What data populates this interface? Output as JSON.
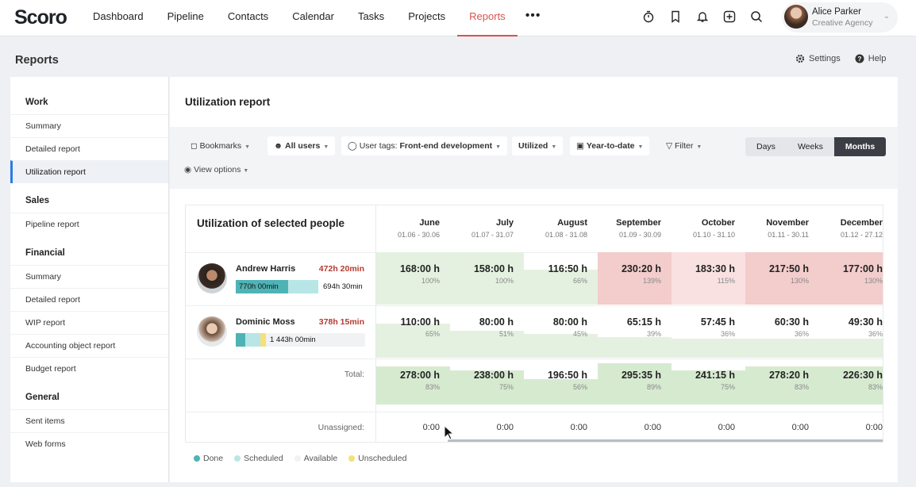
{
  "app": {
    "logo": "Scoro"
  },
  "nav": {
    "items": [
      "Dashboard",
      "Pipeline",
      "Contacts",
      "Calendar",
      "Tasks",
      "Projects",
      "Reports"
    ],
    "active": "Reports",
    "more": "•••"
  },
  "top_icons": [
    "timer-icon",
    "bookmark-icon",
    "bell-icon",
    "plus-square-icon",
    "search-icon"
  ],
  "user": {
    "name": "Alice Parker",
    "company": "Creative Agency"
  },
  "page": {
    "title": "Reports",
    "settings": "Settings",
    "help": "Help"
  },
  "sidebar": {
    "groups": [
      {
        "label": "Work",
        "items": [
          "Summary",
          "Detailed report",
          "Utilization report"
        ]
      },
      {
        "label": "Sales",
        "items": [
          "Pipeline report"
        ]
      },
      {
        "label": "Financial",
        "items": [
          "Summary",
          "Detailed report",
          "WIP report",
          "Accounting object report",
          "Budget report"
        ]
      },
      {
        "label": "General",
        "items": [
          "Sent items",
          "Web forms"
        ]
      }
    ],
    "active": "Utilization report"
  },
  "main": {
    "title": "Utilization report",
    "filters": {
      "bookmarks": "Bookmarks",
      "users": "All users",
      "tags_prefix": "User tags: ",
      "tags_value": "Front-end development",
      "utilized": "Utilized",
      "period": "Year-to-date",
      "filter": "Filter",
      "view_options": "View options"
    },
    "segments": [
      "Days",
      "Weeks",
      "Months"
    ],
    "segment_active": "Months"
  },
  "table": {
    "title": "Utilization of selected people",
    "months": [
      {
        "name": "June",
        "range": "01.06 - 30.06"
      },
      {
        "name": "July",
        "range": "01.07 - 31.07"
      },
      {
        "name": "August",
        "range": "01.08 - 31.08"
      },
      {
        "name": "September",
        "range": "01.09 - 30.09"
      },
      {
        "name": "October",
        "range": "01.10 - 31.10"
      },
      {
        "name": "November",
        "range": "01.11 - 30.11"
      },
      {
        "name": "December",
        "range": "01.12 - 27.12"
      }
    ],
    "people": [
      {
        "name": "Andrew Harris",
        "over": "472h 20min",
        "done": "770h 00min",
        "scheduled": "694h 30min",
        "hours": [
          "168:00 h",
          "158:00 h",
          "116:50 h",
          "230:20 h",
          "183:30 h",
          "217:50 h",
          "177:00 h"
        ],
        "pct": [
          "100%",
          "100%",
          "66%",
          "139%",
          "115%",
          "130%",
          "130%"
        ],
        "fill": [
          1.0,
          1.0,
          0.66,
          1.0,
          1.0,
          1.0,
          1.0
        ],
        "status": [
          "ok",
          "ok",
          "ok",
          "over",
          "over-light",
          "over",
          "over"
        ]
      },
      {
        "name": "Dominic Moss",
        "over": "378h 15min",
        "done": "1 443h 00min",
        "hours": [
          "110:00 h",
          "80:00 h",
          "80:00 h",
          "65:15 h",
          "57:45 h",
          "60:30 h",
          "49:30 h"
        ],
        "pct": [
          "65%",
          "51%",
          "45%",
          "39%",
          "36%",
          "36%",
          "36%"
        ],
        "fill": [
          0.65,
          0.51,
          0.45,
          0.39,
          0.36,
          0.36,
          0.36
        ],
        "status": [
          "ok",
          "ok",
          "ok",
          "ok",
          "ok",
          "ok",
          "ok"
        ]
      }
    ],
    "total_label": "Total:",
    "totals": {
      "hours": [
        "278:00 h",
        "238:00 h",
        "196:50 h",
        "295:35 h",
        "241:15 h",
        "278:20 h",
        "226:30 h"
      ],
      "pct": [
        "83%",
        "75%",
        "56%",
        "89%",
        "75%",
        "83%",
        "83%"
      ],
      "fill": [
        0.83,
        0.75,
        0.56,
        0.89,
        0.75,
        0.83,
        0.83
      ]
    },
    "unassigned_label": "Unassigned:",
    "unassigned": [
      "0:00",
      "0:00",
      "0:00",
      "0:00",
      "0:00",
      "0:00",
      "0:00"
    ]
  },
  "legend": [
    "Done",
    "Scheduled",
    "Available",
    "Unscheduled"
  ],
  "colors": {
    "accent": "#d9534f",
    "done": "#4fb3b5",
    "scheduled": "#b8e6e6",
    "available": "#f1f2f4",
    "unscheduled": "#f5e07a",
    "green": "#e4f1e0",
    "green_strong": "#d6ead0",
    "red": "#f3cccc",
    "red_light": "#f9e1e1",
    "active_tab": "#3b3f45"
  }
}
